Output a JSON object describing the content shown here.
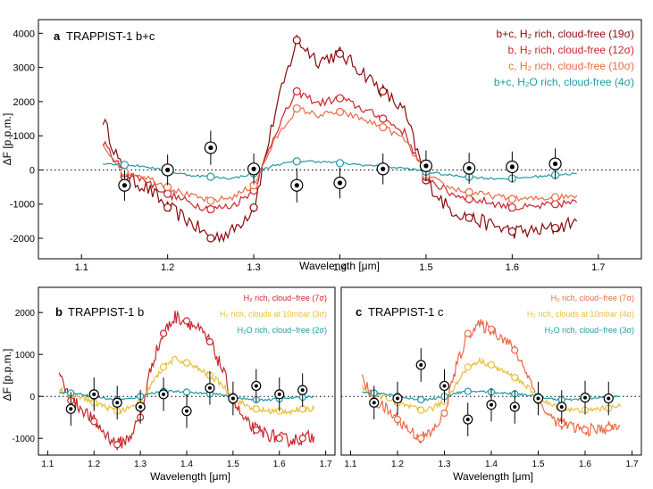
{
  "colors": {
    "darkred": "#8b0a0a",
    "red": "#c8262c",
    "orange": "#ea6a45",
    "teal": "#1f9aa6",
    "gold": "#e9be3a",
    "axis": "#000000",
    "obs_fill": "#ffffff"
  },
  "chart_data": [
    {
      "type": "line",
      "panel_letter": "a",
      "panel_title": "TRAPPIST-1 b+c",
      "xlabel": "Wavelength [μm]",
      "ylabel": "ΔF [p.p.m.]",
      "xlim": [
        1.05,
        1.75
      ],
      "ylim": [
        -2600,
        4400
      ],
      "xticks": [
        "1.1",
        "1.2",
        "1.3",
        "1.4",
        "1.5",
        "1.6",
        "1.7"
      ],
      "yticks": [
        "-2000",
        "-1000",
        "0",
        "1000",
        "2000",
        "3000",
        "4000"
      ],
      "zero_line": "dotted",
      "legend_position": "top-right",
      "wavelength_grid": [
        1.125,
        1.15,
        1.175,
        1.2,
        1.225,
        1.25,
        1.275,
        1.3,
        1.325,
        1.35,
        1.375,
        1.4,
        1.425,
        1.45,
        1.475,
        1.5,
        1.525,
        1.55,
        1.575,
        1.6,
        1.625,
        1.65,
        1.675
      ],
      "series": [
        {
          "name": "b+c, H₂ rich, cloud-free (19σ)",
          "color_key": "darkred",
          "noise": 220,
          "values": [
            1500,
            -200,
            -500,
            -1100,
            -1500,
            -2000,
            -1800,
            -1100,
            1700,
            3800,
            3200,
            3400,
            2900,
            2300,
            1700,
            -300,
            -1100,
            -1400,
            -1600,
            -1800,
            -1800,
            -1700,
            -1500
          ]
        },
        {
          "name": "b, H₂ rich, cloud-free (12σ)",
          "color_key": "red",
          "noise": 120,
          "values": [
            800,
            -100,
            -300,
            -700,
            -950,
            -1150,
            -1050,
            -600,
            1100,
            2300,
            1950,
            2100,
            1800,
            1500,
            1100,
            -200,
            -650,
            -850,
            -950,
            -1100,
            -1100,
            -1000,
            -950
          ]
        },
        {
          "name": "c, H₂ rich, cloud-free (10σ)",
          "color_key": "orange",
          "noise": 90,
          "values": [
            700,
            -50,
            -200,
            -500,
            -750,
            -900,
            -800,
            -450,
            900,
            1800,
            1600,
            1700,
            1500,
            1250,
            900,
            -150,
            -500,
            -650,
            -750,
            -850,
            -850,
            -800,
            -750
          ]
        },
        {
          "name": "b+c, H₂O rich, cloud-free (4σ)",
          "color_key": "teal",
          "noise": 35,
          "values": [
            200,
            150,
            100,
            -50,
            -150,
            -200,
            -250,
            -100,
            150,
            250,
            250,
            200,
            150,
            100,
            50,
            -50,
            -150,
            -200,
            -250,
            -250,
            -200,
            -150,
            -100
          ]
        }
      ],
      "observations": {
        "x": [
          1.15,
          1.2,
          1.25,
          1.3,
          1.35,
          1.4,
          1.45,
          1.5,
          1.55,
          1.6,
          1.65
        ],
        "y": [
          -450,
          0,
          650,
          30,
          -450,
          -380,
          30,
          120,
          50,
          90,
          180
        ],
        "yerr": [
          450,
          450,
          500,
          450,
          500,
          450,
          450,
          450,
          450,
          450,
          450
        ]
      }
    },
    {
      "type": "line",
      "panel_letter": "b",
      "panel_title": "TRAPPIST-1 b",
      "xlabel": "Wavelength [μm]",
      "ylabel": "ΔF [p.p.m.]",
      "xlim": [
        1.08,
        1.72
      ],
      "ylim": [
        -1400,
        2600
      ],
      "xticks": [
        "1.1",
        "1.2",
        "1.3",
        "1.4",
        "1.5",
        "1.6",
        "1.7"
      ],
      "yticks": [
        "-1000",
        "0",
        "1000",
        "2000"
      ],
      "zero_line": "dotted",
      "legend_position": "top-right",
      "wavelength_grid": [
        1.125,
        1.15,
        1.175,
        1.2,
        1.225,
        1.25,
        1.275,
        1.3,
        1.325,
        1.35,
        1.375,
        1.4,
        1.425,
        1.45,
        1.475,
        1.5,
        1.525,
        1.55,
        1.575,
        1.6,
        1.625,
        1.65,
        1.675
      ],
      "series": [
        {
          "name": "H₂ rich, cloud−free (7σ)",
          "color_key": "red",
          "noise": 160,
          "values": [
            500,
            -100,
            -300,
            -600,
            -900,
            -1150,
            -1000,
            -500,
            800,
            1500,
            1900,
            1800,
            1600,
            1300,
            700,
            -100,
            -600,
            -800,
            -900,
            -1000,
            -1050,
            -1000,
            -950
          ]
        },
        {
          "name": "H₂ rich, clouds at 10mbar (3σ)",
          "color_key": "gold",
          "noise": 70,
          "values": [
            200,
            50,
            -20,
            -150,
            -250,
            -350,
            -300,
            -150,
            300,
            700,
            900,
            800,
            650,
            500,
            300,
            -50,
            -200,
            -300,
            -350,
            -350,
            -350,
            -300,
            -300
          ]
        },
        {
          "name": "H₂O rich, cloud−free (2σ)",
          "color_key": "teal",
          "noise": 25,
          "values": [
            100,
            80,
            50,
            0,
            -50,
            -80,
            -60,
            0,
            80,
            120,
            120,
            100,
            80,
            60,
            40,
            0,
            -60,
            -80,
            -80,
            -60,
            -40,
            -20,
            0
          ]
        }
      ],
      "observations": {
        "x": [
          1.15,
          1.2,
          1.25,
          1.3,
          1.35,
          1.4,
          1.45,
          1.5,
          1.55,
          1.6,
          1.65
        ],
        "y": [
          -300,
          50,
          -150,
          -250,
          50,
          -350,
          200,
          -50,
          250,
          50,
          150
        ],
        "yerr": [
          400,
          400,
          400,
          400,
          400,
          400,
          400,
          400,
          400,
          400,
          400
        ]
      }
    },
    {
      "type": "line",
      "panel_letter": "c",
      "panel_title": "TRAPPIST-1 c",
      "xlabel": "Wavelength [μm]",
      "ylabel": "",
      "xlim": [
        1.08,
        1.72
      ],
      "ylim": [
        -1400,
        2600
      ],
      "xticks": [
        "1.1",
        "1.2",
        "1.3",
        "1.4",
        "1.5",
        "1.6",
        "1.7"
      ],
      "yticks": [],
      "zero_line": "dotted",
      "legend_position": "top-right",
      "wavelength_grid": [
        1.125,
        1.15,
        1.175,
        1.2,
        1.225,
        1.25,
        1.275,
        1.3,
        1.325,
        1.35,
        1.375,
        1.4,
        1.425,
        1.45,
        1.475,
        1.5,
        1.525,
        1.55,
        1.575,
        1.6,
        1.625,
        1.65,
        1.675
      ],
      "series": [
        {
          "name": "H₂ rich, cloud−free (7σ)",
          "color_key": "orange",
          "noise": 150,
          "values": [
            400,
            -100,
            -300,
            -550,
            -800,
            -1000,
            -850,
            -400,
            700,
            1500,
            1700,
            1600,
            1400,
            1100,
            600,
            -100,
            -500,
            -650,
            -750,
            -800,
            -800,
            -750,
            -700
          ]
        },
        {
          "name": "H₂ rich, clouds at 10mbar (4σ)",
          "color_key": "gold",
          "noise": 65,
          "values": [
            200,
            50,
            -30,
            -150,
            -250,
            -330,
            -280,
            -120,
            300,
            700,
            850,
            750,
            600,
            450,
            250,
            -50,
            -200,
            -280,
            -330,
            -330,
            -300,
            -280,
            -250
          ]
        },
        {
          "name": "H₂O rich, cloud−free (3σ)",
          "color_key": "teal",
          "noise": 25,
          "values": [
            100,
            80,
            50,
            0,
            -50,
            -80,
            -60,
            0,
            80,
            120,
            120,
            100,
            80,
            60,
            40,
            0,
            -60,
            -80,
            -80,
            -60,
            -40,
            -20,
            0
          ]
        }
      ],
      "observations": {
        "x": [
          1.15,
          1.2,
          1.25,
          1.3,
          1.35,
          1.4,
          1.45,
          1.5,
          1.55,
          1.6,
          1.65
        ],
        "y": [
          -150,
          -50,
          750,
          250,
          -550,
          -200,
          -250,
          -50,
          -250,
          -30,
          -50
        ],
        "yerr": [
          400,
          400,
          400,
          400,
          400,
          400,
          400,
          400,
          400,
          400,
          400
        ]
      }
    }
  ]
}
